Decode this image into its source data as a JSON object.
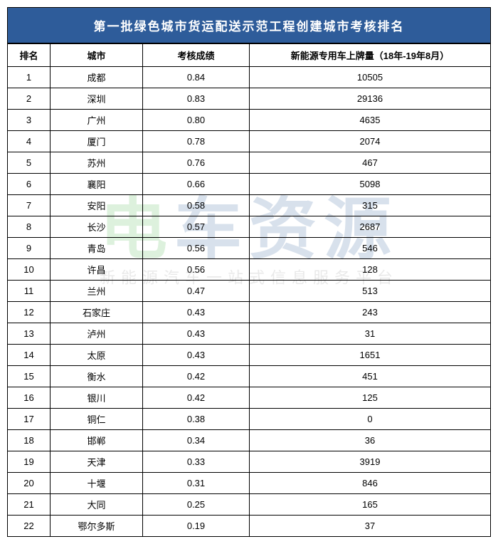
{
  "title": "第一批绿色城市货运配送示范工程创建城市考核排名",
  "columns": [
    "排名",
    "城市",
    "考核成绩",
    "新能源专用车上牌量（18年-19年8月）"
  ],
  "rows": [
    [
      "1",
      "成都",
      "0.84",
      "10505"
    ],
    [
      "2",
      "深圳",
      "0.83",
      "29136"
    ],
    [
      "3",
      "广州",
      "0.80",
      "4635"
    ],
    [
      "4",
      "厦门",
      "0.78",
      "2074"
    ],
    [
      "5",
      "苏州",
      "0.76",
      "467"
    ],
    [
      "6",
      "襄阳",
      "0.66",
      "5098"
    ],
    [
      "7",
      "安阳",
      "0.58",
      "315"
    ],
    [
      "8",
      "长沙",
      "0.57",
      "2687"
    ],
    [
      "9",
      "青岛",
      "0.56",
      "546"
    ],
    [
      "10",
      "许昌",
      "0.56",
      "128"
    ],
    [
      "11",
      "兰州",
      "0.47",
      "513"
    ],
    [
      "12",
      "石家庄",
      "0.43",
      "243"
    ],
    [
      "13",
      "泸州",
      "0.43",
      "31"
    ],
    [
      "14",
      "太原",
      "0.43",
      "1651"
    ],
    [
      "15",
      "衡水",
      "0.42",
      "451"
    ],
    [
      "16",
      "银川",
      "0.42",
      "125"
    ],
    [
      "17",
      "铜仁",
      "0.38",
      "0"
    ],
    [
      "18",
      "邯郸",
      "0.34",
      "36"
    ],
    [
      "19",
      "天津",
      "0.33",
      "3919"
    ],
    [
      "20",
      "十堰",
      "0.31",
      "846"
    ],
    [
      "21",
      "大同",
      "0.25",
      "165"
    ],
    [
      "22",
      "鄂尔多斯",
      "0.19",
      "37"
    ]
  ],
  "watermark": {
    "main_chars": [
      "电",
      "车",
      "资",
      "源"
    ],
    "sub": "新能源汽车一站式信息服务平台"
  },
  "styling": {
    "title_bg": "#2e5c9a",
    "title_color": "#ffffff",
    "border_color": "#000000",
    "font_family": "Microsoft YaHei",
    "title_fontsize": 17,
    "cell_fontsize": 13,
    "wm_green": "#4ab84a",
    "wm_blue": "#2e5c9a",
    "wm_gray": "#888888"
  }
}
